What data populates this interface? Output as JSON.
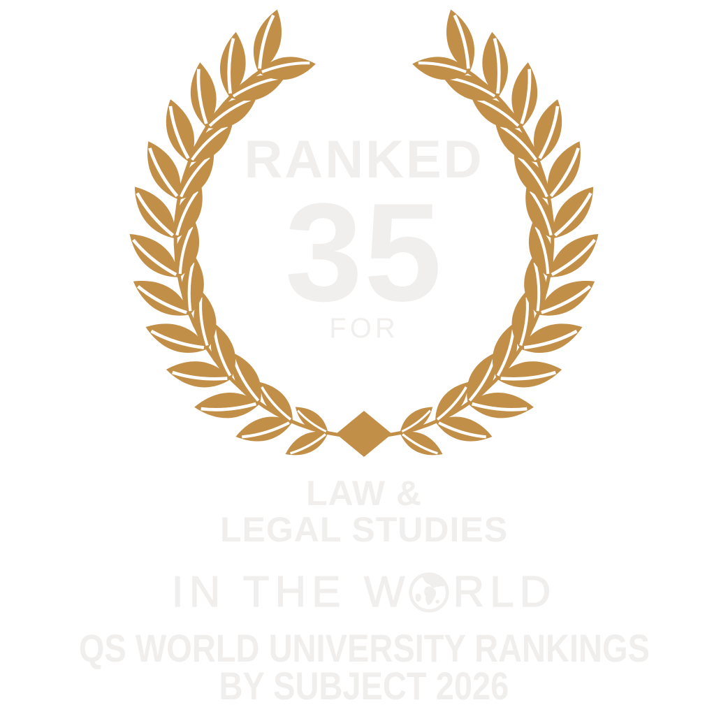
{
  "badge": {
    "ranked_label": "RANKED",
    "rank": "35",
    "for_label": "FOR",
    "subject": {
      "line1": "LAW &",
      "line2": "LEGAL STUDIES"
    },
    "scope": {
      "prefix": "IN THE W",
      "suffix": "RLD"
    },
    "footer": {
      "line1": "QS WORLD UNIVERSITY RANKINGS",
      "line2": "BY SUBJECT 2026"
    }
  },
  "icons": {
    "globe": "globe-icon",
    "wreath": "laurel-wreath"
  },
  "colors": {
    "gold": "#C28F49",
    "text": "#F0EFED",
    "background": "#FFFFFF"
  }
}
